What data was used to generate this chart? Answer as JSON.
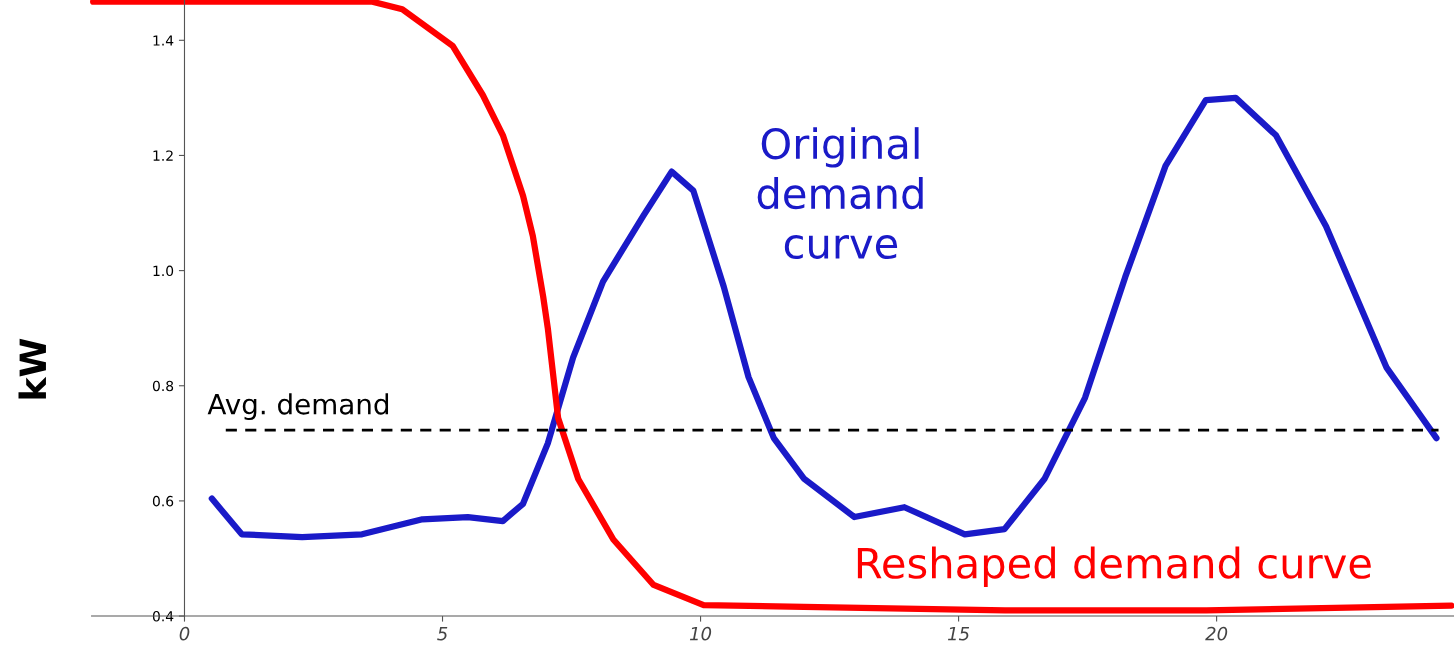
{
  "chart_data": {
    "type": "line",
    "ylabel": "kW",
    "xlim": [
      -1.8,
      24.6
    ],
    "ylim": [
      0.4,
      1.47
    ],
    "xticks": [
      0,
      5,
      10,
      15,
      20
    ],
    "yticks": [
      0.4,
      0.6,
      0.8,
      {
        "value": 1.0,
        "label": "1.0"
      },
      1.2,
      1.4
    ],
    "grid": false,
    "legend": false,
    "marker": "none",
    "series": [
      {
        "color": "#1a1ac8",
        "x": [
          0.53,
          1.11,
          2.28,
          3.44,
          4.61,
          5.49,
          6.17,
          6.56,
          7.04,
          7.53,
          8.11,
          8.89,
          9.44,
          9.86,
          10.45,
          10.93,
          11.42,
          12.0,
          12.98,
          13.95,
          15.12,
          15.89,
          16.67,
          17.45,
          18.23,
          19.01,
          19.79,
          20.37,
          21.15,
          22.12,
          23.29,
          24.26
        ],
        "values": [
          0.604,
          0.542,
          0.537,
          0.542,
          0.568,
          0.572,
          0.565,
          0.595,
          0.7,
          0.849,
          0.981,
          1.095,
          1.172,
          1.139,
          0.972,
          0.815,
          0.709,
          0.639,
          0.572,
          0.589,
          0.542,
          0.551,
          0.639,
          0.779,
          0.989,
          1.182,
          1.296,
          1.3,
          1.235,
          1.077,
          0.832,
          0.709
        ]
      },
      {
        "color": "#ff0000",
        "x": [
          -1.77,
          3.64,
          4.22,
          5.2,
          5.78,
          6.17,
          6.56,
          6.75,
          6.95,
          7.04,
          7.24,
          7.63,
          8.31,
          9.09,
          10.06,
          12.0,
          15.9,
          19.8,
          24.55
        ],
        "values": [
          1.467,
          1.467,
          1.454,
          1.39,
          1.305,
          1.235,
          1.13,
          1.06,
          0.955,
          0.9,
          0.744,
          0.638,
          0.533,
          0.454,
          0.419,
          0.416,
          0.41,
          0.41,
          0.418
        ]
      },
      {
        "color": "#000000",
        "line_style": "dashed",
        "x": [
          0.8,
          24.3
        ],
        "values": [
          0.723,
          0.723
        ]
      }
    ],
    "annotations": [
      "Original\ndemand\ncurve",
      "Reshaped demand curve",
      "Avg. demand"
    ]
  }
}
